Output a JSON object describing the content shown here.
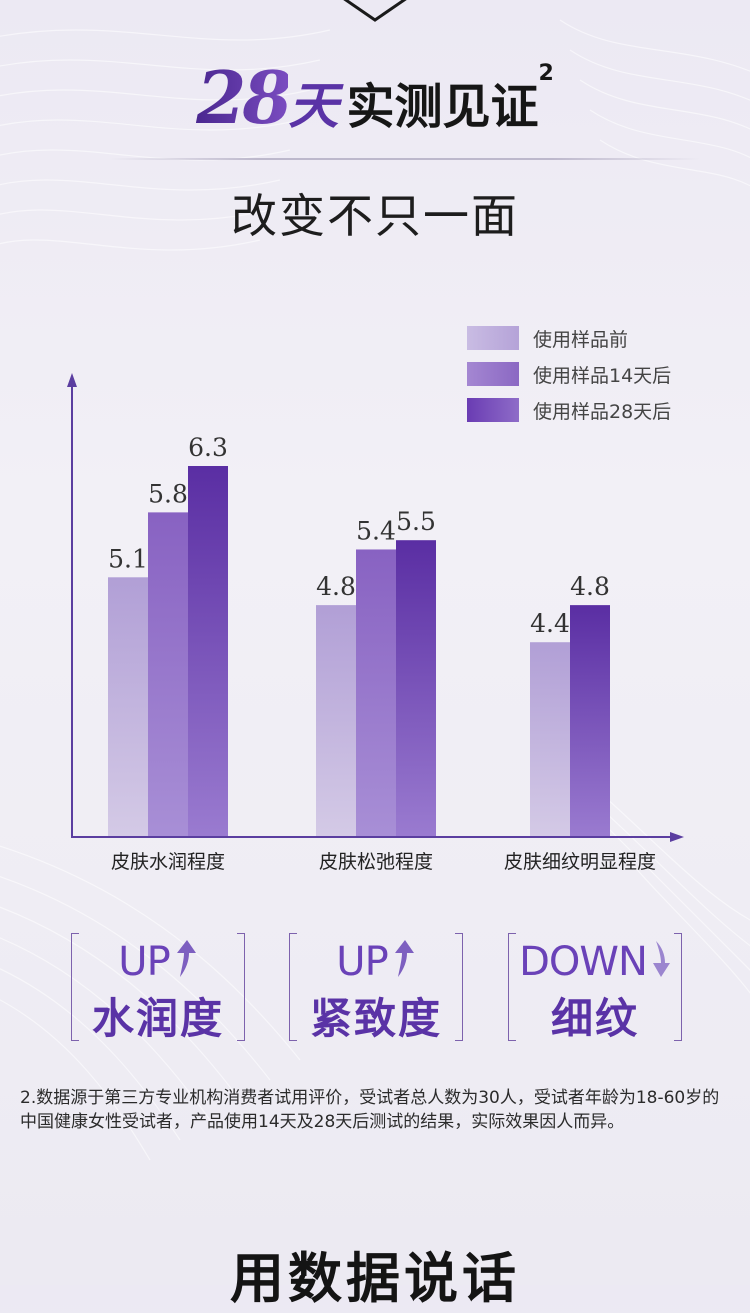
{
  "headline": {
    "number": "28",
    "unit": "天",
    "rest": "实测见证",
    "footnote_mark": "2"
  },
  "subtitle": "改变不只一面",
  "chart_data": {
    "type": "bar",
    "categories": [
      "皮肤水润程度",
      "皮肤松弛程度",
      "皮肤细纹明显程度"
    ],
    "series": [
      {
        "name": "使用样品前",
        "values": [
          5.1,
          4.8,
          4.4
        ],
        "value_labels": [
          "5.1",
          "4.8",
          "4.4"
        ]
      },
      {
        "name": "使用样品14天后",
        "values": [
          5.8,
          5.4,
          null
        ],
        "value_labels": [
          "5.8",
          "5.4",
          null
        ]
      },
      {
        "name": "使用样品28天后",
        "values": [
          6.3,
          5.5,
          4.8
        ],
        "value_labels": [
          "6.3",
          "5.5",
          "4.8"
        ]
      }
    ],
    "ylim": [
      2.3,
      6.9
    ],
    "legend_position": "top-right",
    "grid": false,
    "colors": [
      "#b7a6d8",
      "#8f6dc6",
      "#5c32a6"
    ]
  },
  "cards": [
    {
      "word": "UP",
      "arrow": "up-arrow-icon",
      "name": "水润度"
    },
    {
      "word": "UP",
      "arrow": "up-arrow-icon",
      "name": "紧致度"
    },
    {
      "word": "DOWN",
      "arrow": "down-arrow-icon",
      "name": "细纹"
    }
  ],
  "footnote": "2.数据源于第三方专业机构消费者试用评价，受试者总人数为30人，受试者年龄为18-60岁的中国健康女性受试者，产品使用14天及28天后测试的结果，实际效果因人而异。",
  "bottom_title": "用数据说话"
}
